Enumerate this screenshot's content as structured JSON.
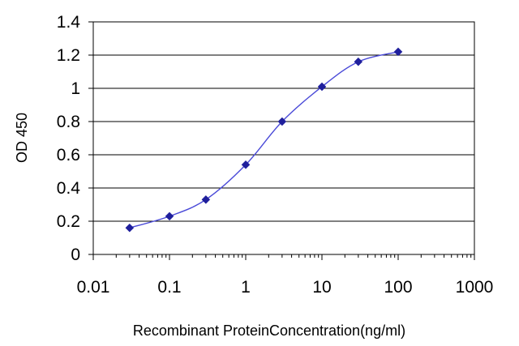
{
  "chart_data": {
    "type": "line",
    "title": "",
    "xlabel": "Recombinant ProteinConcentration(ng/ml)",
    "ylabel": "OD 450",
    "x_scale": "log",
    "xlim": [
      0.01,
      1000
    ],
    "ylim": [
      0,
      1.4
    ],
    "x_ticks": [
      "0.01",
      "0.1",
      "1",
      "10",
      "100",
      "1000"
    ],
    "y_ticks": [
      "0",
      "0.2",
      "0.4",
      "0.6",
      "0.8",
      "1",
      "1.2",
      "1.4"
    ],
    "grid": "horizontal",
    "legend": "none",
    "series": [
      {
        "color": "#1f1f9c",
        "marker": "diamond",
        "x": [
          0.03,
          0.1,
          0.3,
          1,
          3,
          10,
          30,
          100
        ],
        "y": [
          0.16,
          0.23,
          0.33,
          0.54,
          0.8,
          1.01,
          1.16,
          1.22
        ]
      }
    ]
  }
}
